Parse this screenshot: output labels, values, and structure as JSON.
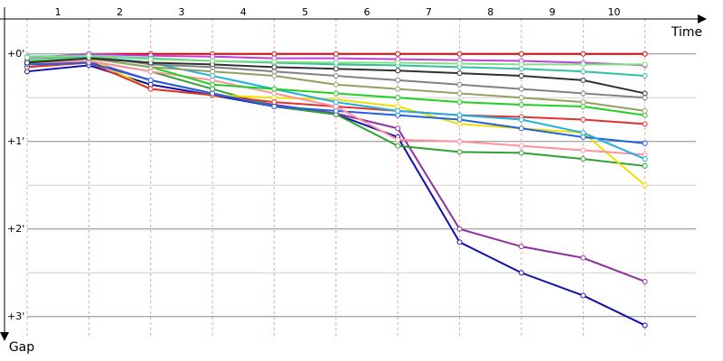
{
  "chart_data": {
    "type": "line",
    "x_label": "Time",
    "y_label": "Gap",
    "categories": [
      "1",
      "2",
      "3",
      "4",
      "5",
      "6",
      "7",
      "8",
      "9",
      "10"
    ],
    "x": [
      0,
      1,
      2,
      3,
      4,
      5,
      6,
      7,
      8,
      9,
      10
    ],
    "xlim": [
      0,
      11
    ],
    "ylim": [
      -0.4,
      3.25
    ],
    "y_inverted": true,
    "yticks": [
      {
        "value": 0,
        "label": "+0'"
      },
      {
        "value": 1,
        "label": "+1'"
      },
      {
        "value": 2,
        "label": "+2'"
      },
      {
        "value": 3,
        "label": "+3'"
      }
    ],
    "minor_yticks": [
      0.5,
      1.5,
      2.5
    ],
    "grid": true,
    "series": [
      {
        "color": "#e00000",
        "values": [
          0.05,
          0,
          0,
          0,
          0,
          0,
          0,
          0,
          0,
          0,
          0
        ]
      },
      {
        "color": "#1010b0",
        "values": [
          0.2,
          0.13,
          0.35,
          0.47,
          0.6,
          0.69,
          0.95,
          2.15,
          2.5,
          2.76,
          3.1
        ]
      },
      {
        "color": "#9030a0",
        "values": [
          0.15,
          0.08,
          0.3,
          0.45,
          0.58,
          0.68,
          0.85,
          2.0,
          2.2,
          2.33,
          2.6
        ]
      },
      {
        "color": "#30a030",
        "values": [
          0.1,
          0.08,
          0.2,
          0.4,
          0.6,
          0.69,
          1.05,
          1.12,
          1.13,
          1.2,
          1.28
        ]
      },
      {
        "color": "#f0e000",
        "values": [
          0.1,
          0.05,
          0.4,
          0.47,
          0.5,
          0.52,
          0.6,
          0.8,
          0.85,
          0.9,
          1.5
        ]
      },
      {
        "color": "#e03030",
        "values": [
          0.15,
          0.1,
          0.4,
          0.47,
          0.55,
          0.6,
          0.65,
          0.7,
          0.72,
          0.75,
          0.8
        ]
      },
      {
        "color": "#2060e0",
        "values": [
          0.12,
          0.1,
          0.3,
          0.45,
          0.6,
          0.65,
          0.7,
          0.75,
          0.85,
          0.95,
          1.02
        ]
      },
      {
        "color": "#ff90a0",
        "values": [
          0.1,
          0.08,
          0.2,
          0.3,
          0.45,
          0.6,
          0.98,
          1.0,
          1.05,
          1.1,
          1.15
        ]
      },
      {
        "color": "#20b0e0",
        "values": [
          0.05,
          0.03,
          0.1,
          0.25,
          0.4,
          0.55,
          0.65,
          0.7,
          0.75,
          0.9,
          1.2
        ]
      },
      {
        "color": "#20d020",
        "values": [
          0.08,
          0.05,
          0.15,
          0.35,
          0.4,
          0.45,
          0.5,
          0.55,
          0.58,
          0.6,
          0.7
        ]
      },
      {
        "color": "#90a060",
        "values": [
          0.1,
          0.05,
          0.15,
          0.2,
          0.25,
          0.35,
          0.4,
          0.45,
          0.5,
          0.55,
          0.65
        ]
      },
      {
        "color": "#808080",
        "values": [
          0.05,
          0.02,
          0.12,
          0.15,
          0.2,
          0.25,
          0.3,
          0.35,
          0.4,
          0.45,
          0.5
        ]
      },
      {
        "color": "#303030",
        "values": [
          0.1,
          0.05,
          0.1,
          0.12,
          0.15,
          0.17,
          0.19,
          0.22,
          0.25,
          0.3,
          0.45
        ]
      },
      {
        "color": "#c040e0",
        "values": [
          0.05,
          0,
          0.02,
          0.03,
          0.05,
          0.05,
          0.06,
          0.07,
          0.08,
          0.1,
          0.13
        ]
      },
      {
        "color": "#30c0a0",
        "values": [
          0.03,
          0.02,
          0.05,
          0.08,
          0.1,
          0.12,
          0.13,
          0.15,
          0.17,
          0.2,
          0.25
        ]
      },
      {
        "color": "#80e080",
        "values": [
          0.04,
          0.02,
          0.06,
          0.08,
          0.09,
          0.1,
          0.1,
          0.11,
          0.12,
          0.12,
          0.12
        ]
      }
    ]
  }
}
